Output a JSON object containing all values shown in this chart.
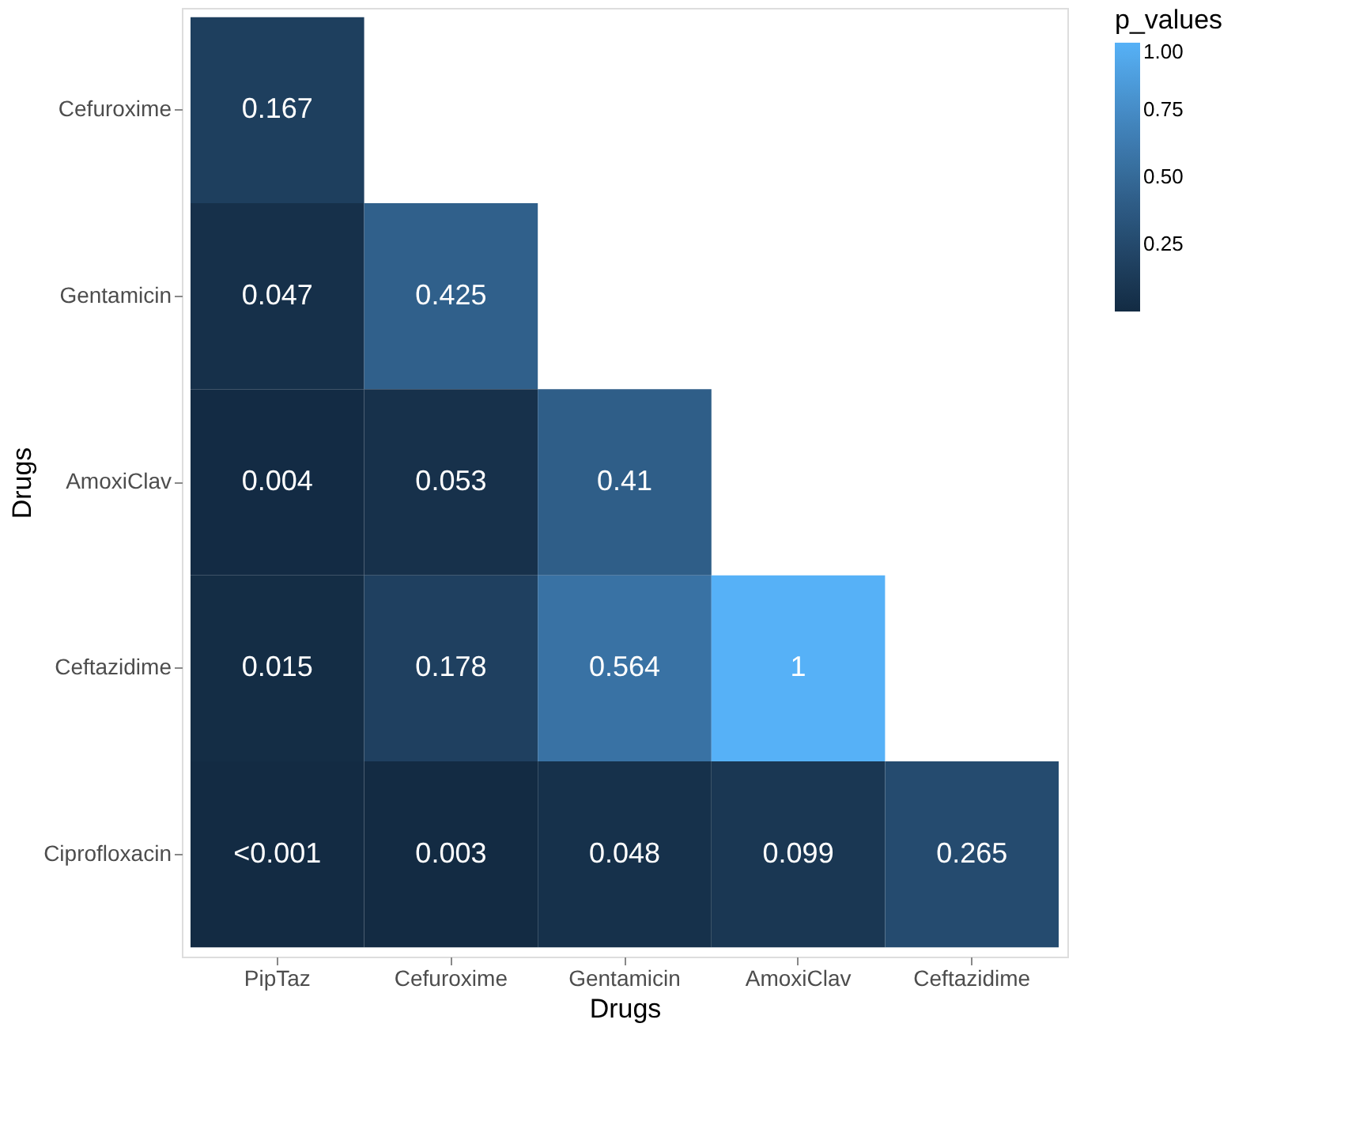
{
  "chart_data": {
    "type": "heatmap",
    "xlabel": "Drugs",
    "ylabel": "Drugs",
    "legend_title": "p_values",
    "grid": false,
    "categories": [
      "PipTaz",
      "Cefuroxime",
      "Gentamicin",
      "AmoxiClav",
      "Ceftazidime"
    ],
    "y_categories": [
      "Cefuroxime",
      "Gentamicin",
      "AmoxiClav",
      "Ceftazidime",
      "Ciprofloxacin"
    ],
    "cells": [
      [
        0.167,
        null,
        null,
        null,
        null
      ],
      [
        0.047,
        0.425,
        null,
        null,
        null
      ],
      [
        0.004,
        0.053,
        0.41,
        null,
        null
      ],
      [
        0.015,
        0.178,
        0.564,
        1,
        null
      ],
      [
        0.0005,
        0.003,
        0.048,
        0.099,
        0.265
      ]
    ],
    "cell_labels": [
      [
        "0.167",
        null,
        null,
        null,
        null
      ],
      [
        "0.047",
        "0.425",
        null,
        null,
        null
      ],
      [
        "0.004",
        "0.053",
        "0.41",
        null,
        null
      ],
      [
        "0.015",
        "0.178",
        "0.564",
        "1",
        null
      ],
      [
        "<0.001",
        "0.003",
        "0.048",
        "0.099",
        "0.265"
      ]
    ],
    "colors": [
      "#132b43",
      "#56b1f7"
    ],
    "clim": [
      0,
      1
    ],
    "cticks": [
      {
        "value": 0.25,
        "label": "0.25"
      },
      {
        "value": 0.5,
        "label": "0.50"
      },
      {
        "value": 0.75,
        "label": "0.75"
      },
      {
        "value": 1,
        "label": "1.00"
      }
    ]
  }
}
